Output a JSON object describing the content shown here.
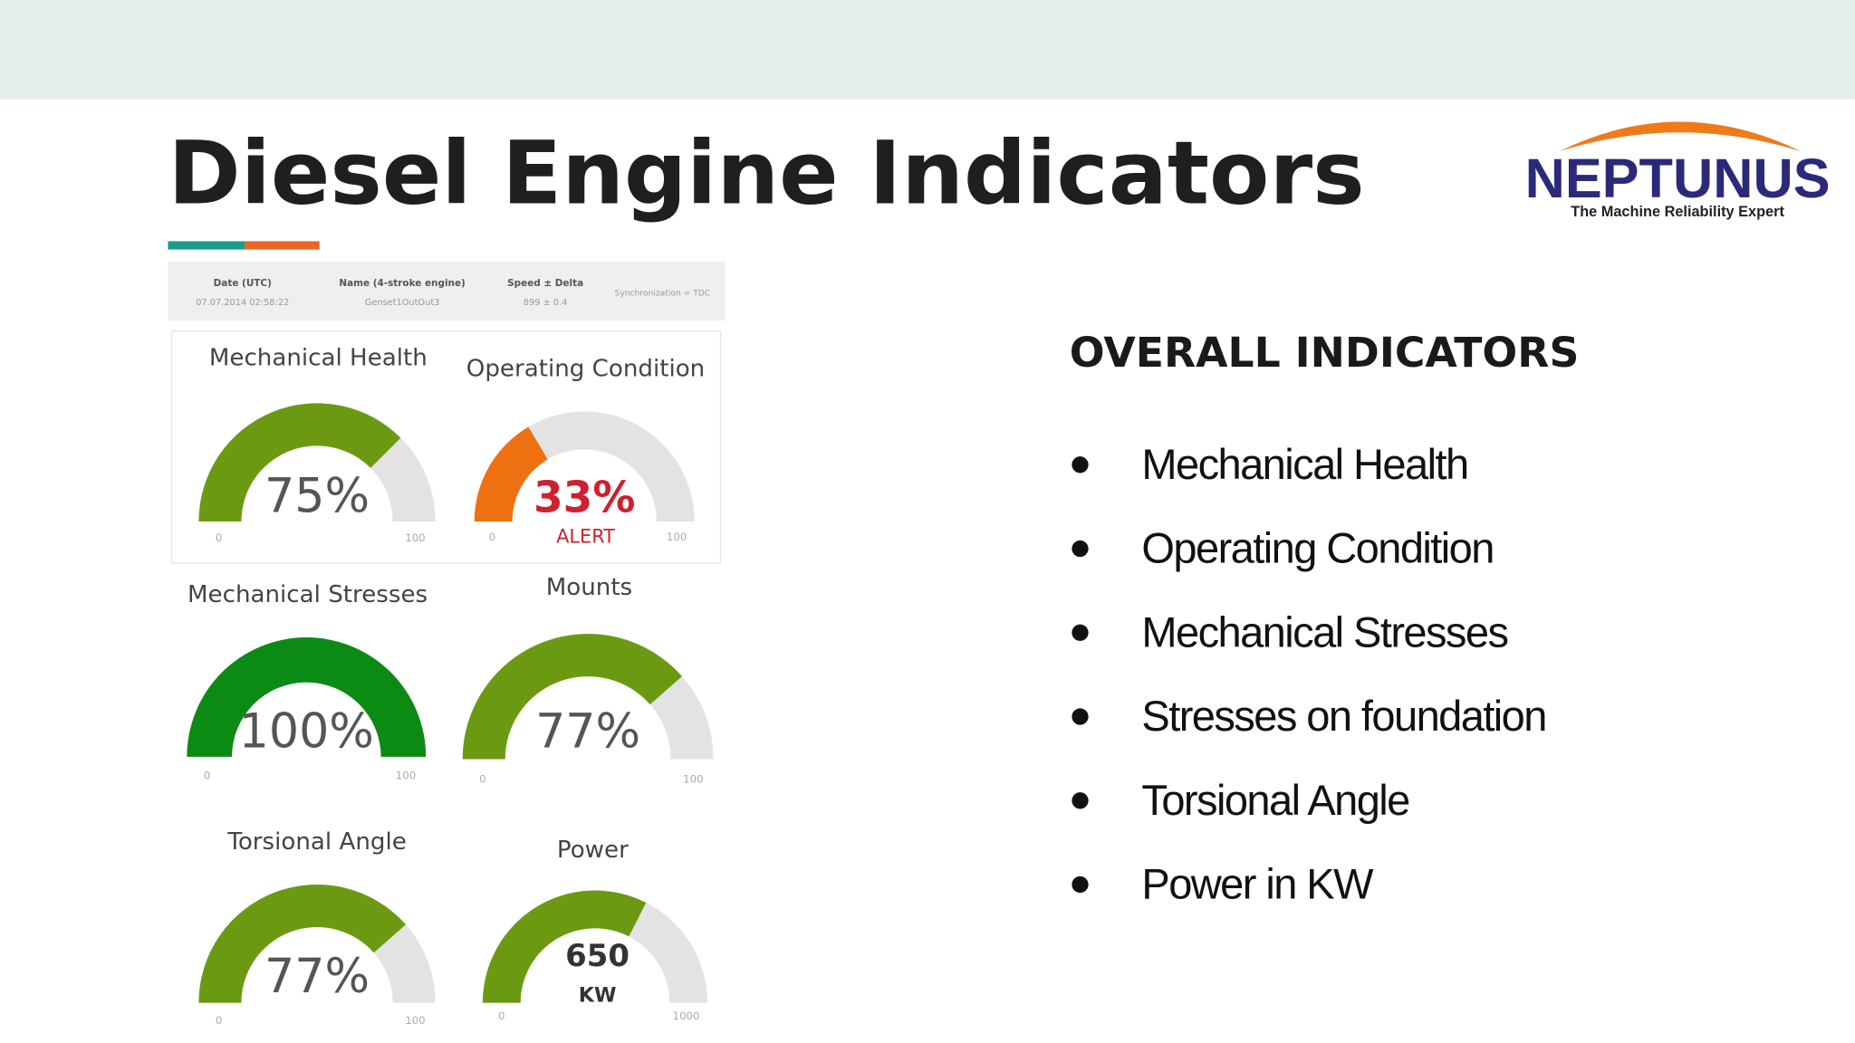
{
  "header": {
    "title": "Diesel Engine Indicators",
    "logo": "NEPTUNUS",
    "tagline": "The Machine Reliability Expert"
  },
  "dashboard": {
    "info": [
      {
        "label": "Date (UTC)",
        "value": "07.07.2014 02:58:22"
      },
      {
        "label": "Name (4-stroke engine)",
        "value": "Genset1OutOut3"
      },
      {
        "label": "Speed ± Delta",
        "value": "899 ± 0.4"
      },
      {
        "label": "Synchronization = TDC"
      }
    ],
    "gauges": [
      {
        "title": "Mechanical Health",
        "value": 75,
        "value_label": "75%",
        "min": 0,
        "max": 100,
        "color": "#6b9a12"
      },
      {
        "title": "Operating Condition",
        "value": 33,
        "value_label": "33%",
        "status": "ALERT",
        "min": 0,
        "max": 100,
        "color": "#ef7010"
      },
      {
        "title": "Mechanical Stresses",
        "value": 100,
        "value_label": "100%",
        "min": 0,
        "max": 100,
        "color": "#0b8a14"
      },
      {
        "title": "Mounts",
        "value": 77,
        "value_label": "77%",
        "min": 0,
        "max": 100,
        "color": "#6b9a12"
      },
      {
        "title": "Torsional Angle",
        "value": 77,
        "value_label": "77%",
        "min": 0,
        "max": 100,
        "color": "#6b9a12"
      },
      {
        "title": "Power",
        "value": 650,
        "unit": "KW",
        "min": 0,
        "max": 1000,
        "color": "#6b9a12"
      }
    ]
  },
  "overall": {
    "heading": "OVERALL INDICATORS",
    "items": [
      "Mechanical Health",
      "Operating Condition",
      "Mechanical Stresses",
      "Stresses on foundation",
      "Torsional Angle",
      "Power in KW"
    ]
  }
}
